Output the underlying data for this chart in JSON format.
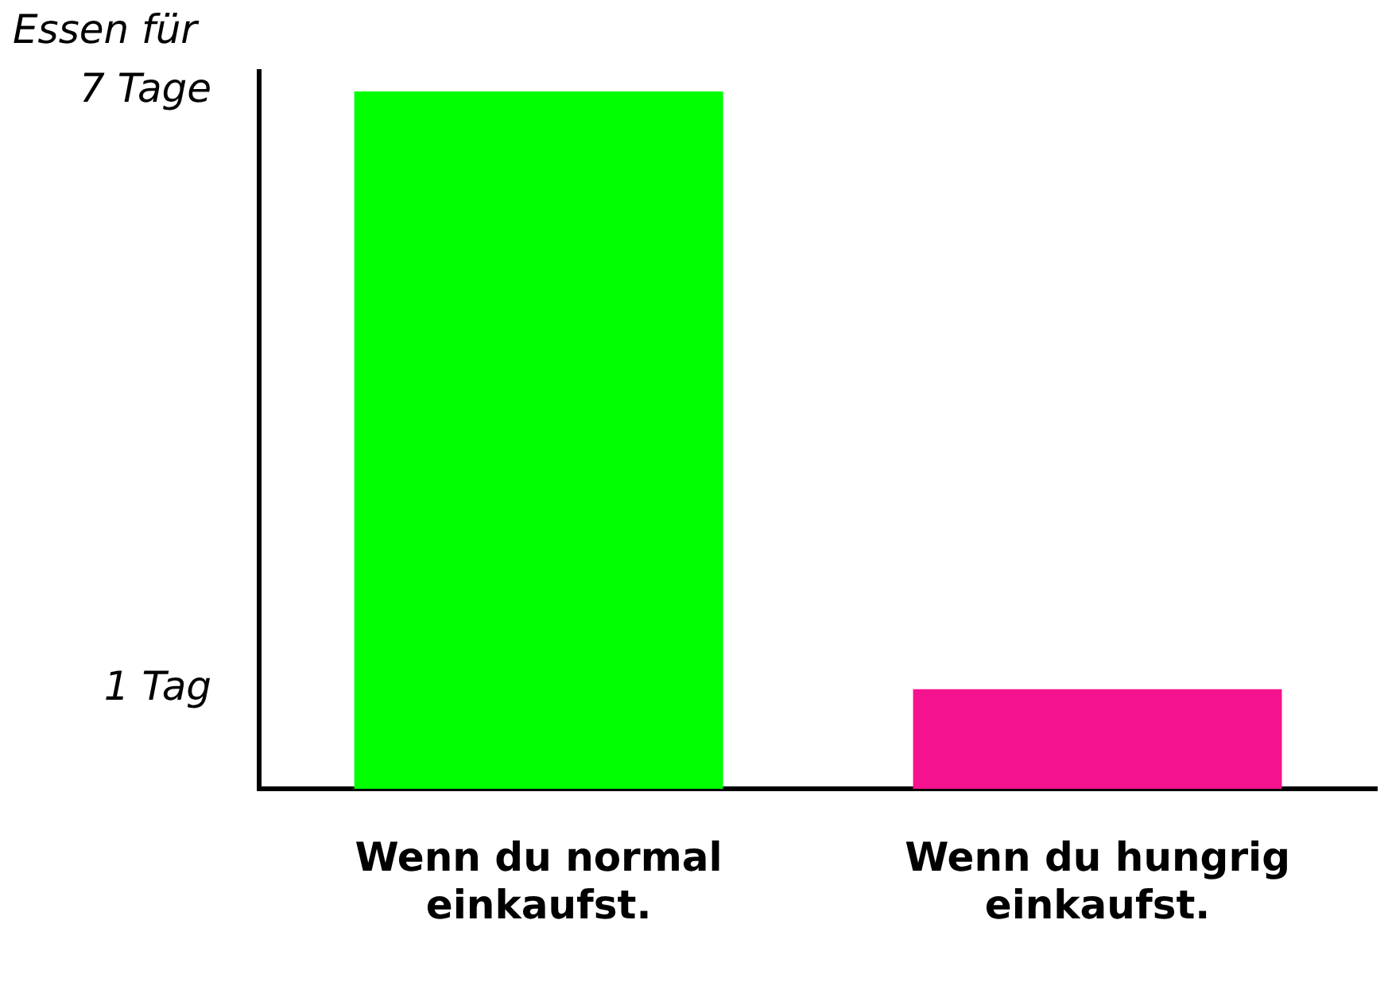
{
  "chart_data": {
    "type": "bar",
    "ylabel": "Essen für",
    "categories": [
      "Wenn du normal einkaufst.",
      "Wenn du hungrig einkaufst."
    ],
    "values": [
      7,
      1
    ],
    "colors": [
      "#00ff00",
      "#f5128f"
    ],
    "ylim": [
      0,
      7.2
    ],
    "yticks": [
      {
        "value": 1,
        "label": "1 Tag"
      },
      {
        "value": 7,
        "label": "7 Tage"
      }
    ],
    "grid": false,
    "legend": false
  }
}
